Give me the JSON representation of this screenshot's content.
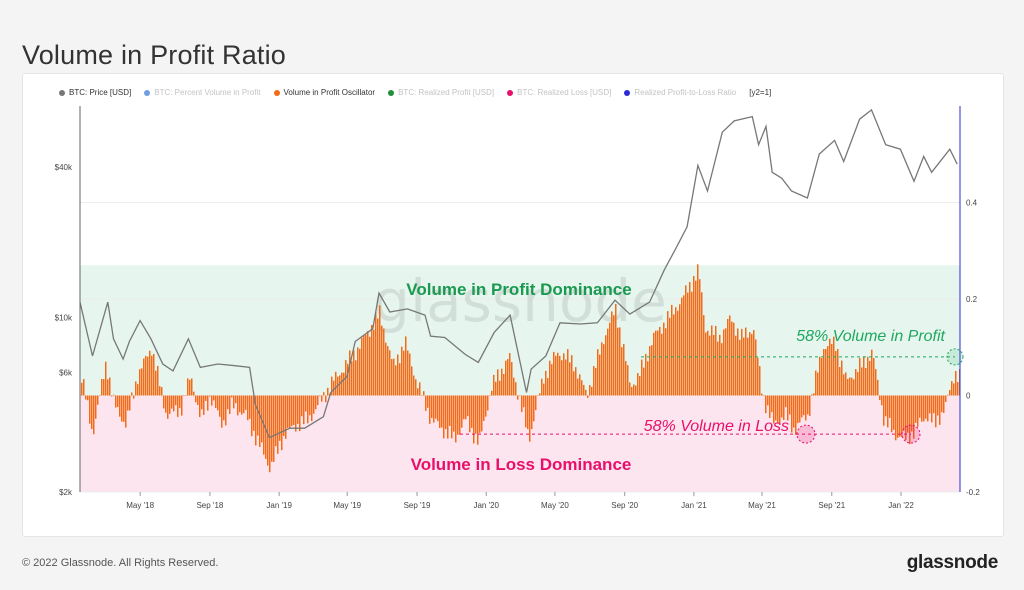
{
  "title": "Volume in Profit Ratio",
  "legend": [
    {
      "label": "BTC: Price [USD]",
      "color": "#777777",
      "muted": false
    },
    {
      "label": "BTC: Percent Volume in Profit",
      "color": "#2e6fd1",
      "muted": true
    },
    {
      "label": "Volume in Profit Oscillator",
      "color": "#f26b16",
      "muted": false
    },
    {
      "label": "BTC: Realized Profit [USD]",
      "color": "#1f8f3a",
      "muted": true
    },
    {
      "label": "BTC: Realized Loss [USD]",
      "color": "#e8106b",
      "muted": true
    },
    {
      "label": "Realized Profit-to-Loss Ratio",
      "color": "#2b2bd6",
      "muted": true
    },
    {
      "label": "[y2=1]",
      "color": null,
      "muted": false
    }
  ],
  "watermark": "glassnode",
  "footer": {
    "copyright": "© 2022 Glassnode. All Rights Reserved.",
    "brand": "glassnode"
  },
  "chart_data": {
    "type": "area",
    "x_tick_labels": [
      "May '18",
      "Sep '18",
      "Jan '19",
      "May '19",
      "Sep '19",
      "Jan '20",
      "May '20",
      "Sep '20",
      "Jan '21",
      "May '21",
      "Sep '21",
      "Jan '22"
    ],
    "y_left": {
      "scale": "log",
      "range": [
        2000,
        70000
      ],
      "tick_labels": [
        "$2k",
        "$6k",
        "$10k",
        "$40k"
      ],
      "tick_values": [
        2000,
        6000,
        10000,
        40000
      ]
    },
    "y_right": {
      "range": [
        -0.2,
        0.6
      ],
      "tick_labels": [
        "-0.2",
        "0",
        "0.2",
        "0.4"
      ],
      "tick_values": [
        -0.2,
        0,
        0.2,
        0.4
      ]
    },
    "zones": [
      {
        "label": "Volume in Profit Dominance",
        "from": 0,
        "to": 0.27,
        "color": "#e6f6ee"
      },
      {
        "label": "Volume in Loss Dominance",
        "from": -0.2,
        "to": 0,
        "color": "#fde5ef"
      }
    ],
    "annotations": [
      {
        "label": "58% Volume in Profit",
        "value": 0.08,
        "color": "#1fa860"
      },
      {
        "label": "58% Volume in Loss",
        "value": -0.08,
        "color": "#e8106b"
      }
    ],
    "series": [
      {
        "name": "BTC: Price [USD]",
        "color": "#777777",
        "dates": [
          "2018-01-15",
          "2018-02-06",
          "2018-03-05",
          "2018-03-15",
          "2018-04-01",
          "2018-04-12",
          "2018-05-01",
          "2018-05-20",
          "2018-06-10",
          "2018-06-28",
          "2018-07-25",
          "2018-08-15",
          "2018-09-15",
          "2018-10-15",
          "2018-11-10",
          "2018-11-20",
          "2018-12-15",
          "2019-01-20",
          "2019-02-15",
          "2019-03-20",
          "2019-04-02",
          "2019-05-01",
          "2019-05-15",
          "2019-06-15",
          "2019-06-26",
          "2019-07-15",
          "2019-08-15",
          "2019-09-15",
          "2019-09-25",
          "2019-10-20",
          "2019-11-25",
          "2019-12-18",
          "2020-01-15",
          "2020-02-12",
          "2020-03-12",
          "2020-03-20",
          "2020-04-15",
          "2020-05-10",
          "2020-06-15",
          "2020-07-15",
          "2020-08-15",
          "2020-09-10",
          "2020-10-15",
          "2020-11-10",
          "2020-12-01",
          "2020-12-20",
          "2021-01-08",
          "2021-01-25",
          "2021-02-20",
          "2021-03-13",
          "2021-04-14",
          "2021-04-25",
          "2021-05-08",
          "2021-05-19",
          "2021-06-05",
          "2021-06-22",
          "2021-07-20",
          "2021-08-10",
          "2021-09-06",
          "2021-09-22",
          "2021-10-20",
          "2021-11-10",
          "2021-12-05",
          "2021-12-31",
          "2022-01-24",
          "2022-02-10",
          "2022-02-24",
          "2022-03-28",
          "2022-04-10"
        ],
        "values": [
          11500,
          7000,
          11500,
          8200,
          6800,
          8000,
          9700,
          8200,
          6500,
          6100,
          8200,
          6300,
          6500,
          6400,
          6300,
          4500,
          3300,
          3600,
          3600,
          4000,
          5000,
          5800,
          8000,
          9000,
          12500,
          10500,
          10800,
          10200,
          8400,
          8300,
          7100,
          6600,
          8700,
          10200,
          5000,
          6200,
          7000,
          9500,
          9400,
          9500,
          11700,
          10300,
          11500,
          15500,
          19000,
          23000,
          40500,
          32000,
          55000,
          61000,
          63500,
          49000,
          58000,
          38000,
          36000,
          32000,
          30000,
          45000,
          51000,
          42000,
          62000,
          67500,
          49000,
          47000,
          35000,
          44000,
          38000,
          47000,
          41000
        ]
      },
      {
        "name": "Volume in Profit Oscillator",
        "color": "#f26b16",
        "dates": [
          "2018-01-15",
          "2018-02-05",
          "2018-03-01",
          "2018-03-15",
          "2018-04-05",
          "2018-04-25",
          "2018-05-20",
          "2018-06-15",
          "2018-07-10",
          "2018-07-28",
          "2018-08-15",
          "2018-09-01",
          "2018-09-20",
          "2018-10-10",
          "2018-11-01",
          "2018-11-25",
          "2018-12-15",
          "2019-01-10",
          "2019-02-01",
          "2019-02-20",
          "2019-03-10",
          "2019-04-05",
          "2019-04-25",
          "2019-05-20",
          "2019-06-10",
          "2019-06-26",
          "2019-07-20",
          "2019-08-10",
          "2019-08-30",
          "2019-09-25",
          "2019-10-15",
          "2019-11-05",
          "2019-11-25",
          "2019-12-18",
          "2020-01-10",
          "2020-02-10",
          "2020-03-01",
          "2020-03-15",
          "2020-04-10",
          "2020-05-05",
          "2020-06-01",
          "2020-06-25",
          "2020-07-25",
          "2020-08-15",
          "2020-09-10",
          "2020-09-25",
          "2020-10-20",
          "2020-11-15",
          "2020-12-10",
          "2021-01-08",
          "2021-01-20",
          "2021-02-15",
          "2021-03-05",
          "2021-03-25",
          "2021-04-15",
          "2021-05-01",
          "2021-05-20",
          "2021-06-10",
          "2021-06-25",
          "2021-07-20",
          "2021-08-15",
          "2021-09-06",
          "2021-09-25",
          "2021-10-20",
          "2021-11-10",
          "2021-12-01",
          "2021-12-20",
          "2022-01-10",
          "2022-01-25",
          "2022-02-15",
          "2022-03-01",
          "2022-03-20",
          "2022-04-05",
          "2022-04-12"
        ],
        "values": [
          0.05,
          -0.08,
          0.07,
          -0.02,
          -0.06,
          0.04,
          0.1,
          -0.04,
          -0.03,
          0.04,
          -0.05,
          0.0,
          -0.06,
          -0.02,
          -0.04,
          -0.1,
          -0.15,
          -0.08,
          -0.06,
          -0.05,
          -0.02,
          0.03,
          0.06,
          0.1,
          0.14,
          0.17,
          0.06,
          0.11,
          0.03,
          -0.05,
          -0.07,
          -0.09,
          -0.05,
          -0.1,
          0.02,
          0.08,
          -0.02,
          -0.09,
          0.04,
          0.09,
          0.07,
          0.0,
          0.12,
          0.18,
          0.02,
          0.04,
          0.12,
          0.16,
          0.2,
          0.26,
          0.14,
          0.12,
          0.16,
          0.12,
          0.14,
          0.0,
          -0.06,
          -0.04,
          -0.07,
          -0.04,
          0.1,
          0.11,
          0.03,
          0.06,
          0.09,
          -0.05,
          -0.08,
          -0.09,
          -0.07,
          -0.04,
          -0.06,
          -0.02,
          0.05,
          0.04
        ]
      }
    ]
  }
}
